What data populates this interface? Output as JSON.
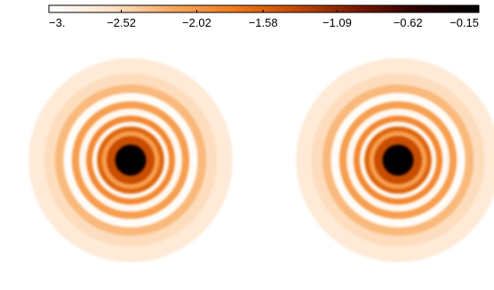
{
  "chart_data": {
    "type": "heatmap",
    "title": "",
    "xlabel": "",
    "ylabel": "",
    "colorbar": {
      "orientation": "horizontal",
      "location": "top",
      "range": [
        -3.0,
        -0.15
      ],
      "ticks": [
        -3.0,
        -2.52,
        -2.02,
        -1.58,
        -1.09,
        -0.62,
        -0.15
      ],
      "tick_labels": [
        "−3.",
        "−2.52",
        "−2.02",
        "−1.58",
        "−1.09",
        "−0.62",
        "−0.15"
      ],
      "colormap": [
        "#ffffff",
        "#fde3c8",
        "#f9a85e",
        "#f07a1c",
        "#c54a04",
        "#7a1a00",
        "#2a0000",
        "#000000"
      ]
    },
    "panels": [
      {
        "name": "",
        "peak_value": -0.15,
        "background_value": -3.0,
        "ring_profile": [
          {
            "r": 0.0,
            "v": -0.15
          },
          {
            "r": 0.13,
            "v": -0.3
          },
          {
            "r": 0.2,
            "v": -1.4
          },
          {
            "r": 0.24,
            "v": -2.1
          },
          {
            "r": 0.28,
            "v": -1.6
          },
          {
            "r": 0.32,
            "v": -2.9
          },
          {
            "r": 0.37,
            "v": -1.9
          },
          {
            "r": 0.43,
            "v": -2.9
          },
          {
            "r": 0.49,
            "v": -2.1
          },
          {
            "r": 0.56,
            "v": -2.95
          },
          {
            "r": 0.63,
            "v": -2.3
          },
          {
            "r": 0.72,
            "v": -2.55
          },
          {
            "r": 0.85,
            "v": -2.7
          },
          {
            "r": 1.0,
            "v": -3.0
          }
        ]
      },
      {
        "name": "",
        "peak_value": -0.15,
        "background_value": -3.0,
        "ring_profile": [
          {
            "r": 0.0,
            "v": -0.15
          },
          {
            "r": 0.13,
            "v": -0.3
          },
          {
            "r": 0.2,
            "v": -1.4
          },
          {
            "r": 0.24,
            "v": -2.1
          },
          {
            "r": 0.28,
            "v": -1.6
          },
          {
            "r": 0.32,
            "v": -2.9
          },
          {
            "r": 0.37,
            "v": -1.9
          },
          {
            "r": 0.43,
            "v": -2.9
          },
          {
            "r": 0.49,
            "v": -2.1
          },
          {
            "r": 0.56,
            "v": -2.95
          },
          {
            "r": 0.63,
            "v": -2.3
          },
          {
            "r": 0.72,
            "v": -2.55
          },
          {
            "r": 0.85,
            "v": -2.7
          },
          {
            "r": 1.0,
            "v": -3.0
          }
        ]
      }
    ],
    "grid": false,
    "legend": "none"
  }
}
